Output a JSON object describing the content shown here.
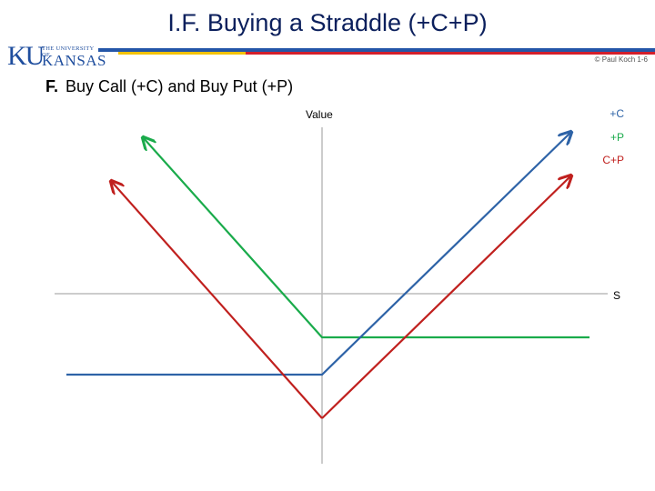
{
  "slide": {
    "title": "I.F.  Buying a Straddle  (+C+P)",
    "copyright": "© Paul Koch 1-6",
    "subtitle_letter": "F.",
    "subtitle_text": "Buy Call (+C)  and  Buy Put (+P)"
  },
  "logo": {
    "ku": "KU",
    "small_text": "THE UNIVERSITY OF",
    "big_text": "KANSAS"
  },
  "diagram": {
    "y_axis_label": "Value",
    "x_axis_label": "S",
    "legend": [
      {
        "label": "+C",
        "color": "#2e63a7"
      },
      {
        "label": "+P",
        "color": "#1aab4b"
      },
      {
        "label": "C+P",
        "color": "#c0201e"
      }
    ]
  }
}
